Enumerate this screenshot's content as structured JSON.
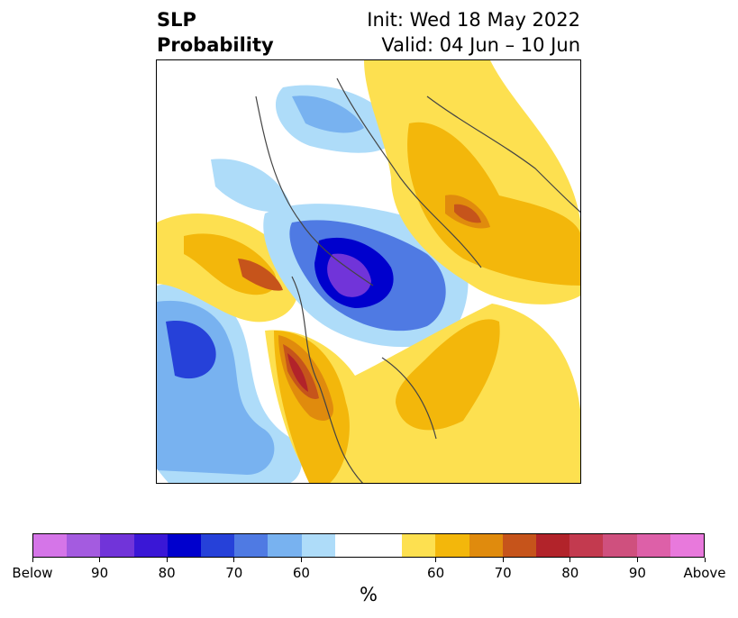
{
  "title": {
    "variable": "SLP",
    "subtitle": "Probability",
    "init": "Init: Wed 18 May 2022",
    "valid": "Valid: 04 Jun – 10 Jun"
  },
  "colorbar": {
    "unit": "%",
    "colors": [
      "#d575e8",
      "#a45be0",
      "#7134d9",
      "#3a17d6",
      "#0000cd",
      "#2641d9",
      "#4f7ae3",
      "#78b2f0",
      "#aedcf9",
      "#ffffff",
      "#ffffff",
      "#fde050",
      "#f3b70b",
      "#e08b0d",
      "#c6541b",
      "#b2232a",
      "#c33a4f",
      "#cf507e",
      "#dd60a8",
      "#e879dc"
    ],
    "ticks": [
      {
        "label": "Below",
        "index": 0
      },
      {
        "label": "90",
        "index": 2
      },
      {
        "label": "80",
        "index": 4
      },
      {
        "label": "70",
        "index": 6
      },
      {
        "label": "60",
        "index": 8
      },
      {
        "label": "60",
        "index": 12
      },
      {
        "label": "70",
        "index": 14
      },
      {
        "label": "80",
        "index": 16
      },
      {
        "label": "90",
        "index": 18
      },
      {
        "label": "Above",
        "index": 20
      }
    ]
  }
}
